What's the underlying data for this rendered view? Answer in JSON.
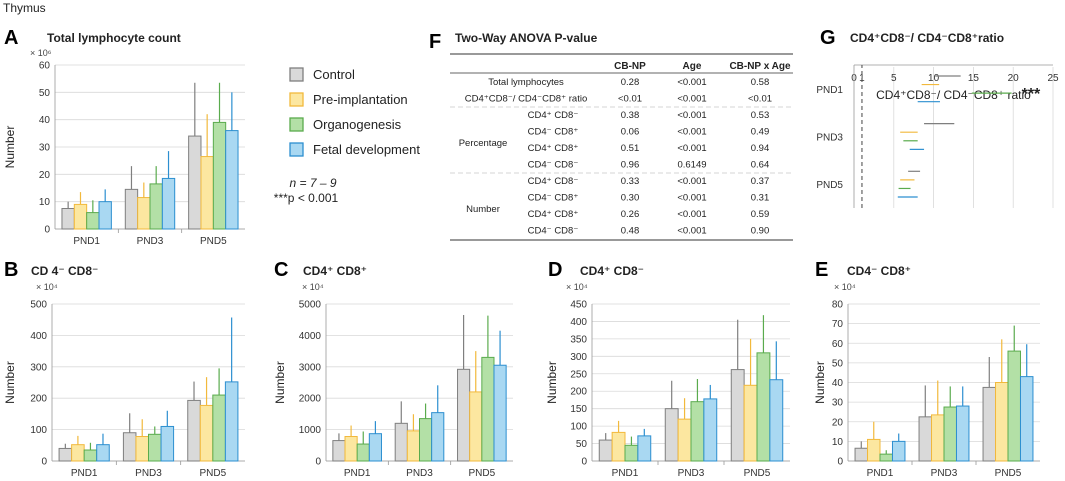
{
  "figure_caption": "Thymus",
  "colors": {
    "Control": "#d9d9d9",
    "Pre-implantation": "#fce7a0",
    "Organogenesis": "#b3e0a6",
    "Fetal development": "#a9d8f2"
  },
  "edge_colors": {
    "Control": "#7f7f7f",
    "Pre-implantation": "#f2b93c",
    "Organogenesis": "#5aab4d",
    "Fetal development": "#2c8fd0"
  },
  "legend": {
    "items": [
      "Control",
      "Pre-implantation",
      "Organogenesis",
      "Fetal development"
    ],
    "n_text": "n = 7 – 9",
    "p_text": "***p < 0.001"
  },
  "chart_data": [
    {
      "id": "A",
      "letter": "A",
      "type": "bar",
      "title": "Total lymphocyte count",
      "scale_label": "× 10⁶",
      "ylabel": "Number",
      "ylim": [
        0,
        60
      ],
      "yticks": [
        0,
        10,
        20,
        30,
        40,
        50,
        60
      ],
      "categories": [
        "PND1",
        "PND3",
        "PND5"
      ],
      "series": [
        {
          "name": "Control",
          "values": [
            7.5,
            14.5,
            34
          ],
          "errors": [
            2.5,
            8.5,
            19.5
          ]
        },
        {
          "name": "Pre-implantation",
          "values": [
            9,
            11.5,
            26.5
          ],
          "errors": [
            4.5,
            5.5,
            15.5
          ]
        },
        {
          "name": "Organogenesis",
          "values": [
            6,
            16.5,
            39
          ],
          "errors": [
            4.5,
            6.5,
            14.5
          ]
        },
        {
          "name": "Fetal development",
          "values": [
            10,
            18.5,
            36
          ],
          "errors": [
            4.5,
            10,
            14
          ]
        }
      ]
    },
    {
      "id": "B",
      "letter": "B",
      "type": "bar",
      "title": "CD 4⁻ CD8⁻",
      "scale_label": "× 10⁴",
      "ylabel": "Number",
      "ylim": [
        0,
        500
      ],
      "yticks": [
        0,
        100,
        200,
        300,
        400,
        500
      ],
      "categories": [
        "PND1",
        "PND3",
        "PND5"
      ],
      "series": [
        {
          "name": "Control",
          "values": [
            40,
            90,
            193
          ],
          "errors": [
            15,
            62,
            60
          ]
        },
        {
          "name": "Pre-implantation",
          "values": [
            52,
            78,
            177
          ],
          "errors": [
            28,
            55,
            90
          ]
        },
        {
          "name": "Organogenesis",
          "values": [
            35,
            85,
            210
          ],
          "errors": [
            23,
            25,
            85
          ]
        },
        {
          "name": "Fetal development",
          "values": [
            52,
            110,
            252
          ],
          "errors": [
            35,
            50,
            205
          ]
        }
      ]
    },
    {
      "id": "C",
      "letter": "C",
      "type": "bar",
      "title": "CD4⁺ CD8⁺",
      "scale_label": "× 10⁴",
      "ylabel": "Number",
      "ylim": [
        0,
        5000
      ],
      "yticks": [
        0,
        1000,
        2000,
        3000,
        4000,
        5000
      ],
      "categories": [
        "PND1",
        "PND3",
        "PND5"
      ],
      "series": [
        {
          "name": "Control",
          "values": [
            650,
            1200,
            2920
          ],
          "errors": [
            230,
            700,
            1730
          ]
        },
        {
          "name": "Pre-implantation",
          "values": [
            780,
            960,
            2200
          ],
          "errors": [
            350,
            530,
            1300
          ]
        },
        {
          "name": "Organogenesis",
          "values": [
            540,
            1350,
            3300
          ],
          "errors": [
            400,
            480,
            1330
          ]
        },
        {
          "name": "Fetal development",
          "values": [
            870,
            1540,
            3050
          ],
          "errors": [
            400,
            870,
            1100
          ]
        }
      ]
    },
    {
      "id": "D",
      "letter": "D",
      "type": "bar",
      "title": "CD4⁺ CD8⁻",
      "scale_label": "× 10⁴",
      "ylabel": "Number",
      "ylim": [
        0,
        450
      ],
      "yticks": [
        0,
        50,
        100,
        150,
        200,
        250,
        300,
        350,
        400,
        450
      ],
      "categories": [
        "PND1",
        "PND3",
        "PND5"
      ],
      "series": [
        {
          "name": "Control",
          "values": [
            60,
            150,
            262
          ],
          "errors": [
            20,
            80,
            143
          ]
        },
        {
          "name": "Pre-implantation",
          "values": [
            82,
            120,
            217
          ],
          "errors": [
            33,
            60,
            133
          ]
        },
        {
          "name": "Organogenesis",
          "values": [
            45,
            170,
            310
          ],
          "errors": [
            25,
            65,
            108
          ]
        },
        {
          "name": "Fetal development",
          "values": [
            72,
            178,
            233
          ],
          "errors": [
            20,
            40,
            110
          ]
        }
      ]
    },
    {
      "id": "E",
      "letter": "E",
      "type": "bar",
      "title": "CD4⁻ CD8⁺",
      "scale_label": "× 10⁴",
      "ylabel": "Number",
      "ylim": [
        0,
        80
      ],
      "yticks": [
        0,
        10,
        20,
        30,
        40,
        50,
        60,
        70,
        80
      ],
      "categories": [
        "PND1",
        "PND3",
        "PND5"
      ],
      "series": [
        {
          "name": "Control",
          "values": [
            6.5,
            22.5,
            37.5
          ],
          "errors": [
            3.5,
            16,
            15.5
          ]
        },
        {
          "name": "Pre-implantation",
          "values": [
            11,
            23.5,
            40
          ],
          "errors": [
            9,
            17.5,
            22
          ]
        },
        {
          "name": "Organogenesis",
          "values": [
            3.5,
            27.5,
            56
          ],
          "errors": [
            2,
            10.5,
            13
          ]
        },
        {
          "name": "Fetal development",
          "values": [
            10,
            28,
            43
          ],
          "errors": [
            4,
            10,
            16.5
          ]
        }
      ]
    },
    {
      "id": "G",
      "letter": "G",
      "type": "bar-horizontal",
      "title": "CD4⁺CD8⁻/ CD4⁻CD8⁺ratio",
      "xlabel": "CD4⁺CD8⁻/ CD4⁻CD8⁺ ratio",
      "xlim": [
        0,
        25
      ],
      "xticks": [
        0,
        1,
        5,
        10,
        15,
        20,
        25
      ],
      "categories": [
        "PND5",
        "PND3",
        "PND1"
      ],
      "series": [
        {
          "name": "Control",
          "values": [
            6.8,
            8.8,
            10.2
          ],
          "errors": [
            1.5,
            3.8,
            3.2
          ]
        },
        {
          "name": "Pre-implantation",
          "values": [
            5.8,
            5.8,
            8.5
          ],
          "errors": [
            1.8,
            2.2,
            2.2
          ]
        },
        {
          "name": "Organogenesis",
          "values": [
            5.6,
            6.2,
            14.8
          ],
          "errors": [
            1.5,
            1.8,
            5
          ]
        },
        {
          "name": "Fetal development",
          "values": [
            5.5,
            7,
            8
          ],
          "errors": [
            2.5,
            1.8,
            2.8
          ]
        }
      ],
      "annotation": {
        "category": "PND1",
        "text": "***"
      }
    }
  ],
  "anova": {
    "letter": "F",
    "title": "Two-Way ANOVA P-value",
    "headers": [
      "CB-NP",
      "Age",
      "CB-NP x Age"
    ],
    "top_rows": [
      {
        "label": "Total lymphocytes",
        "values": [
          "0.28",
          "<0.001",
          "0.58"
        ]
      },
      {
        "label": "CD4⁺CD8⁻/ CD4⁻CD8⁺ ratio",
        "values": [
          "<0.01",
          "<0.001",
          "<0.01"
        ]
      }
    ],
    "groups": [
      {
        "name": "Percentage",
        "rows": [
          {
            "label": "CD4⁺ CD8⁻",
            "values": [
              "0.38",
              "<0.001",
              "0.53"
            ]
          },
          {
            "label": "CD4⁻ CD8⁺",
            "values": [
              "0.06",
              "<0.001",
              "0.49"
            ]
          },
          {
            "label": "CD4⁺ CD8⁺",
            "values": [
              "0.51",
              "<0.001",
              "0.94"
            ]
          },
          {
            "label": "CD4⁻ CD8⁻",
            "values": [
              "0.96",
              "0.6149",
              "0.64"
            ]
          }
        ]
      },
      {
        "name": "Number",
        "rows": [
          {
            "label": "CD4⁺ CD8⁻",
            "values": [
              "0.33",
              "<0.001",
              "0.37"
            ]
          },
          {
            "label": "CD4⁻ CD8⁺",
            "values": [
              "0.30",
              "<0.001",
              "0.31"
            ]
          },
          {
            "label": "CD4⁺ CD8⁺",
            "values": [
              "0.26",
              "<0.001",
              "0.59"
            ]
          },
          {
            "label": "CD4⁻ CD8⁻",
            "values": [
              "0.48",
              "<0.001",
              "0.90"
            ]
          }
        ]
      }
    ]
  }
}
